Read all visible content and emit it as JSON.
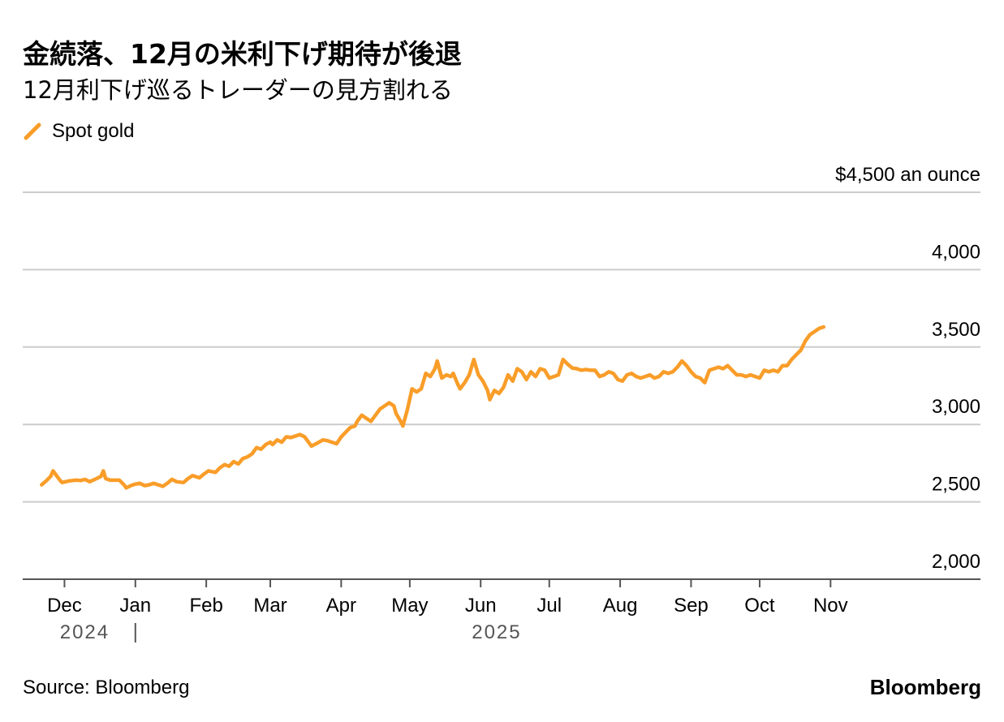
{
  "title": "金続落、12月の米利下げ期待が後退",
  "subtitle": "12月利下げ巡るトレーダーの見方割れる",
  "legend": {
    "label": "Spot gold",
    "color": "#f99d29"
  },
  "source": "Source: Bloomberg",
  "brand": "Bloomberg",
  "chart_data": {
    "type": "line",
    "title": "金続落、12月の米利下げ期待が後退",
    "subtitle": "12月利下げ巡るトレーダーの見方割れる",
    "ylabel": "$4,500 an ounce",
    "ylim": [
      2000,
      4500
    ],
    "yticks": [
      {
        "value": 4500,
        "label": "$4,500 an ounce"
      },
      {
        "value": 4000,
        "label": "4,000"
      },
      {
        "value": 3500,
        "label": "3,500"
      },
      {
        "value": 3000,
        "label": "3,000"
      },
      {
        "value": 2500,
        "label": "2,500"
      },
      {
        "value": 2000,
        "label": "2,000"
      }
    ],
    "xticks": [
      "2024-12-01",
      "2025-01-01",
      "2025-02-01",
      "2025-03-01",
      "2025-04-01",
      "2025-05-01",
      "2025-06-01",
      "2025-07-01",
      "2025-08-01",
      "2025-09-01",
      "2025-10-01",
      "2025-11-01"
    ],
    "xtick_labels": [
      "Dec",
      "Jan",
      "Feb",
      "Mar",
      "Apr",
      "May",
      "Jun",
      "Jul",
      "Aug",
      "Sep",
      "Oct",
      "Nov"
    ],
    "year_labels": [
      "2024",
      "2025"
    ],
    "xlim": [
      "2024-11-17",
      "2025-11-30"
    ],
    "grid": true,
    "legend_position": "top-left",
    "series": [
      {
        "name": "Spot gold",
        "color": "#f99d29",
        "points": [
          [
            "2024-11-21",
            2610
          ],
          [
            "2024-11-23",
            2635
          ],
          [
            "2024-11-25",
            2665
          ],
          [
            "2024-11-26",
            2700
          ],
          [
            "2024-11-27",
            2680
          ],
          [
            "2024-11-29",
            2640
          ],
          [
            "2024-11-30",
            2625
          ],
          [
            "2024-12-03",
            2635
          ],
          [
            "2024-12-06",
            2640
          ],
          [
            "2024-12-08",
            2638
          ],
          [
            "2024-12-10",
            2645
          ],
          [
            "2024-12-12",
            2630
          ],
          [
            "2024-12-15",
            2650
          ],
          [
            "2024-12-17",
            2665
          ],
          [
            "2024-12-18",
            2700
          ],
          [
            "2024-12-19",
            2650
          ],
          [
            "2024-12-21",
            2640
          ],
          [
            "2024-12-25",
            2640
          ],
          [
            "2024-12-27",
            2610
          ],
          [
            "2024-12-28",
            2590
          ],
          [
            "2024-12-30",
            2605
          ],
          [
            "2025-01-01",
            2615
          ],
          [
            "2025-01-03",
            2620
          ],
          [
            "2025-01-05",
            2605
          ],
          [
            "2025-01-07",
            2610
          ],
          [
            "2025-01-09",
            2620
          ],
          [
            "2025-01-11",
            2610
          ],
          [
            "2025-01-13",
            2600
          ],
          [
            "2025-01-15",
            2620
          ],
          [
            "2025-01-17",
            2645
          ],
          [
            "2025-01-19",
            2630
          ],
          [
            "2025-01-22",
            2625
          ],
          [
            "2025-01-24",
            2650
          ],
          [
            "2025-01-26",
            2670
          ],
          [
            "2025-01-29",
            2655
          ],
          [
            "2025-01-31",
            2680
          ],
          [
            "2025-02-02",
            2700
          ],
          [
            "2025-02-05",
            2690
          ],
          [
            "2025-02-07",
            2720
          ],
          [
            "2025-02-09",
            2740
          ],
          [
            "2025-02-11",
            2730
          ],
          [
            "2025-02-13",
            2760
          ],
          [
            "2025-02-15",
            2745
          ],
          [
            "2025-02-17",
            2780
          ],
          [
            "2025-02-19",
            2790
          ],
          [
            "2025-02-21",
            2810
          ],
          [
            "2025-02-23",
            2850
          ],
          [
            "2025-02-25",
            2840
          ],
          [
            "2025-02-27",
            2870
          ],
          [
            "2025-03-01",
            2885
          ],
          [
            "2025-03-02",
            2870
          ],
          [
            "2025-03-04",
            2900
          ],
          [
            "2025-03-06",
            2885
          ],
          [
            "2025-03-08",
            2920
          ],
          [
            "2025-03-10",
            2915
          ],
          [
            "2025-03-12",
            2925
          ],
          [
            "2025-03-14",
            2935
          ],
          [
            "2025-03-16",
            2920
          ],
          [
            "2025-03-18",
            2880
          ],
          [
            "2025-03-19",
            2860
          ],
          [
            "2025-03-21",
            2875
          ],
          [
            "2025-03-24",
            2900
          ],
          [
            "2025-03-26",
            2895
          ],
          [
            "2025-03-28",
            2885
          ],
          [
            "2025-03-30",
            2875
          ],
          [
            "2025-04-01",
            2920
          ],
          [
            "2025-04-03",
            2950
          ],
          [
            "2025-04-05",
            2980
          ],
          [
            "2025-04-07",
            2990
          ],
          [
            "2025-04-08",
            3020
          ],
          [
            "2025-04-10",
            3060
          ],
          [
            "2025-04-12",
            3040
          ],
          [
            "2025-04-14",
            3020
          ],
          [
            "2025-04-16",
            3060
          ],
          [
            "2025-04-18",
            3100
          ],
          [
            "2025-04-20",
            3120
          ],
          [
            "2025-04-22",
            3140
          ],
          [
            "2025-04-24",
            3120
          ],
          [
            "2025-04-25",
            3070
          ],
          [
            "2025-04-27",
            3020
          ],
          [
            "2025-04-28",
            2990
          ],
          [
            "2025-04-30",
            3100
          ],
          [
            "2025-05-02",
            3230
          ],
          [
            "2025-05-04",
            3210
          ],
          [
            "2025-05-06",
            3230
          ],
          [
            "2025-05-08",
            3330
          ],
          [
            "2025-05-10",
            3310
          ],
          [
            "2025-05-12",
            3360
          ],
          [
            "2025-05-13",
            3410
          ],
          [
            "2025-05-15",
            3300
          ],
          [
            "2025-05-17",
            3320
          ],
          [
            "2025-05-19",
            3310
          ],
          [
            "2025-05-20",
            3330
          ],
          [
            "2025-05-22",
            3260
          ],
          [
            "2025-05-23",
            3230
          ],
          [
            "2025-05-25",
            3270
          ],
          [
            "2025-05-27",
            3320
          ],
          [
            "2025-05-29",
            3420
          ],
          [
            "2025-05-31",
            3320
          ],
          [
            "2025-06-02",
            3280
          ],
          [
            "2025-06-04",
            3220
          ],
          [
            "2025-06-05",
            3160
          ],
          [
            "2025-06-07",
            3220
          ],
          [
            "2025-06-09",
            3200
          ],
          [
            "2025-06-11",
            3240
          ],
          [
            "2025-06-13",
            3320
          ],
          [
            "2025-06-15",
            3280
          ],
          [
            "2025-06-17",
            3360
          ],
          [
            "2025-06-19",
            3340
          ],
          [
            "2025-06-21",
            3290
          ],
          [
            "2025-06-23",
            3340
          ],
          [
            "2025-06-25",
            3310
          ],
          [
            "2025-06-27",
            3360
          ],
          [
            "2025-06-29",
            3350
          ],
          [
            "2025-07-01",
            3300
          ],
          [
            "2025-07-03",
            3310
          ],
          [
            "2025-07-05",
            3320
          ],
          [
            "2025-07-07",
            3420
          ],
          [
            "2025-07-09",
            3390
          ],
          [
            "2025-07-11",
            3365
          ],
          [
            "2025-07-13",
            3360
          ],
          [
            "2025-07-15",
            3350
          ],
          [
            "2025-07-17",
            3355
          ],
          [
            "2025-07-19",
            3350
          ],
          [
            "2025-07-21",
            3350
          ],
          [
            "2025-07-23",
            3310
          ],
          [
            "2025-07-25",
            3320
          ],
          [
            "2025-07-27",
            3340
          ],
          [
            "2025-07-29",
            3330
          ],
          [
            "2025-07-31",
            3290
          ],
          [
            "2025-08-02",
            3280
          ],
          [
            "2025-08-04",
            3320
          ],
          [
            "2025-08-06",
            3330
          ],
          [
            "2025-08-08",
            3310
          ],
          [
            "2025-08-10",
            3300
          ],
          [
            "2025-08-12",
            3310
          ],
          [
            "2025-08-14",
            3320
          ],
          [
            "2025-08-16",
            3300
          ],
          [
            "2025-08-18",
            3310
          ],
          [
            "2025-08-20",
            3340
          ],
          [
            "2025-08-22",
            3330
          ],
          [
            "2025-08-24",
            3340
          ],
          [
            "2025-08-26",
            3370
          ],
          [
            "2025-08-28",
            3410
          ],
          [
            "2025-08-30",
            3380
          ],
          [
            "2025-09-01",
            3340
          ],
          [
            "2025-09-03",
            3310
          ],
          [
            "2025-09-05",
            3300
          ],
          [
            "2025-09-07",
            3270
          ],
          [
            "2025-09-09",
            3350
          ],
          [
            "2025-09-11",
            3360
          ],
          [
            "2025-09-13",
            3370
          ],
          [
            "2025-09-15",
            3360
          ],
          [
            "2025-09-17",
            3380
          ],
          [
            "2025-09-19",
            3350
          ],
          [
            "2025-09-21",
            3320
          ],
          [
            "2025-09-23",
            3320
          ],
          [
            "2025-09-25",
            3310
          ],
          [
            "2025-09-27",
            3320
          ],
          [
            "2025-09-29",
            3310
          ],
          [
            "2025-10-01",
            3300
          ],
          [
            "2025-10-03",
            3350
          ],
          [
            "2025-10-05",
            3340
          ],
          [
            "2025-10-07",
            3350
          ],
          [
            "2025-10-09",
            3340
          ],
          [
            "2025-10-11",
            3380
          ],
          [
            "2025-10-13",
            3380
          ],
          [
            "2025-10-15",
            3420
          ],
          [
            "2025-10-17",
            3450
          ],
          [
            "2025-10-19",
            3480
          ],
          [
            "2025-10-21",
            3540
          ],
          [
            "2025-10-23",
            3580
          ],
          [
            "2025-10-25",
            3600
          ],
          [
            "2025-10-27",
            3620
          ],
          [
            "2025-10-29",
            3630
          ]
        ]
      }
    ]
  }
}
